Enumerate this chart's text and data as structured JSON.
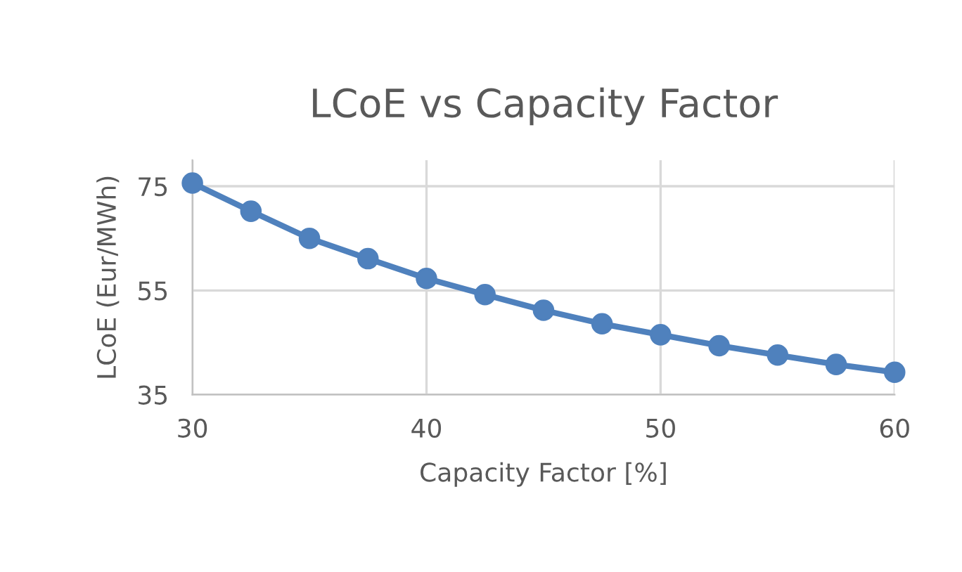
{
  "chart_data": {
    "type": "line",
    "title": "LCoE vs Capacity Factor",
    "xlabel": "Capacity Factor [%]",
    "ylabel": "LCoE (Eur/MWh)",
    "x": [
      30,
      32.5,
      35,
      37.5,
      40,
      42.5,
      45,
      47.5,
      50,
      52.5,
      55,
      57.5,
      60
    ],
    "series": [
      {
        "color": "#4f81bd",
        "values": [
          75.6,
          70.2,
          65.0,
          61.1,
          57.3,
          54.2,
          51.2,
          48.6,
          46.5,
          44.4,
          42.6,
          40.8,
          39.3
        ]
      }
    ],
    "xlim": [
      30,
      60
    ],
    "xticks": [
      30,
      40,
      50,
      60
    ],
    "ylim": [
      35,
      80
    ],
    "yticks": [
      35,
      55,
      75
    ],
    "grid": true,
    "marker": "circle",
    "line_style": "solid"
  }
}
